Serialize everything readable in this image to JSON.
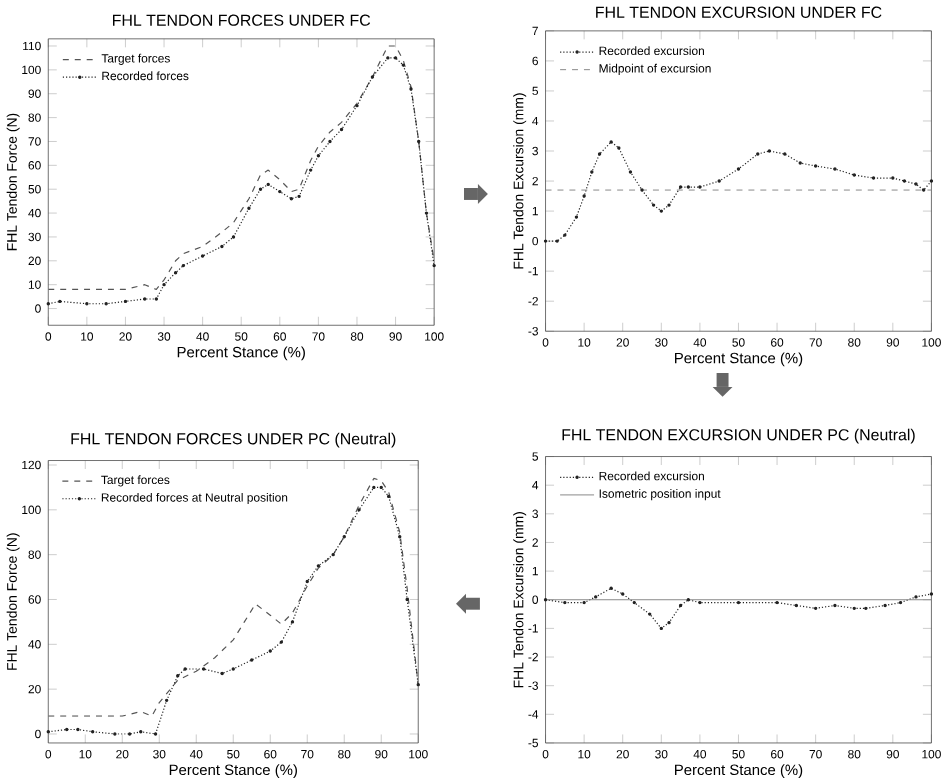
{
  "chart_data": [
    {
      "type": "line",
      "title": "FHL TENDON FORCES UNDER FC",
      "xlabel": "Percent Stance (%)",
      "ylabel": "FHL Tendon Force (N)",
      "xlim": [
        0,
        100
      ],
      "xticks": [
        0,
        10,
        20,
        30,
        40,
        50,
        60,
        70,
        80,
        90,
        100
      ],
      "ylim": [
        -7,
        113
      ],
      "yticks": [
        0,
        10,
        20,
        30,
        40,
        50,
        60,
        70,
        80,
        90,
        100,
        110
      ],
      "legend": "top left",
      "series": [
        {
          "name": "Target forces",
          "color": "#555555",
          "line_style": "dashed",
          "marker": "none",
          "x": [
            0,
            5,
            10,
            15,
            20,
            25,
            28,
            30,
            33,
            35,
            40,
            45,
            48,
            52,
            55,
            57,
            60,
            63,
            65,
            68,
            70,
            73,
            76,
            80,
            84,
            88,
            90,
            92,
            94,
            96,
            98,
            100
          ],
          "values": [
            8,
            8,
            8,
            8,
            8,
            10,
            8,
            12,
            20,
            23,
            26,
            32,
            36,
            46,
            56,
            58,
            54,
            49,
            50,
            62,
            68,
            74,
            78,
            86,
            97,
            110,
            110,
            104,
            93,
            70,
            40,
            20
          ]
        },
        {
          "name": "Recorded forces",
          "color": "#222222",
          "line_style": "dotted",
          "marker": "circle",
          "x": [
            0,
            3,
            10,
            15,
            20,
            25,
            28,
            30,
            33,
            35,
            40,
            45,
            48,
            52,
            55,
            57,
            60,
            63,
            65,
            68,
            70,
            73,
            76,
            80,
            84,
            88,
            90,
            92,
            94,
            96,
            98,
            100
          ],
          "values": [
            2,
            3,
            2,
            2,
            3,
            4,
            4,
            10,
            15,
            18,
            22,
            26,
            30,
            42,
            50,
            52,
            49,
            46,
            47,
            58,
            64,
            70,
            75,
            85,
            97,
            105,
            105,
            102,
            92,
            70,
            40,
            18
          ]
        }
      ]
    },
    {
      "type": "line",
      "title": "FHL TENDON EXCURSION UNDER FC",
      "xlabel": "Percent Stance (%)",
      "ylabel": "FHL Tendon Excursion (mm)",
      "xlim": [
        0,
        100
      ],
      "xticks": [
        0,
        10,
        20,
        30,
        40,
        50,
        60,
        70,
        80,
        90,
        100
      ],
      "ylim": [
        -3,
        7
      ],
      "yticks": [
        -3,
        -2,
        -1,
        0,
        1,
        2,
        3,
        4,
        5,
        6,
        7
      ],
      "legend": "top left",
      "series": [
        {
          "name": "Recorded excursion",
          "color": "#222222",
          "line_style": "dotted",
          "marker": "circle",
          "x": [
            0,
            3,
            5,
            8,
            10,
            12,
            14,
            17,
            19,
            22,
            25,
            28,
            30,
            32,
            35,
            37,
            40,
            45,
            50,
            55,
            58,
            62,
            66,
            70,
            75,
            80,
            85,
            90,
            93,
            96,
            98,
            100
          ],
          "values": [
            0,
            0,
            0.2,
            0.8,
            1.5,
            2.3,
            2.9,
            3.3,
            3.1,
            2.3,
            1.7,
            1.2,
            1.0,
            1.2,
            1.8,
            1.8,
            1.8,
            2.0,
            2.4,
            2.9,
            3.0,
            2.9,
            2.6,
            2.5,
            2.4,
            2.2,
            2.1,
            2.1,
            2.0,
            1.9,
            1.7,
            2.0
          ]
        }
      ],
      "ref_lines": [
        {
          "axis": "y",
          "value": 1.7,
          "label": "Midpoint of excursion",
          "color": "#888888",
          "line_style": "dashed"
        }
      ]
    },
    {
      "type": "line",
      "title": "FHL TENDON FORCES UNDER PC (Neutral)",
      "xlabel": "Percent Stance (%)",
      "ylabel": "FHL Tendon Force (N)",
      "xlim": [
        0,
        100
      ],
      "xticks": [
        0,
        10,
        20,
        30,
        40,
        50,
        60,
        70,
        80,
        90,
        100
      ],
      "ylim": [
        -4,
        122
      ],
      "yticks": [
        0,
        20,
        40,
        60,
        80,
        100,
        120
      ],
      "legend": "top left",
      "series": [
        {
          "name": "Target forces",
          "color": "#555555",
          "line_style": "dashed",
          "marker": "none",
          "x": [
            0,
            10,
            20,
            25,
            28,
            30,
            35,
            40,
            45,
            50,
            53,
            56,
            60,
            63,
            66,
            70,
            73,
            77,
            80,
            84,
            88,
            90,
            92,
            95,
            97,
            100
          ],
          "values": [
            8,
            8,
            8,
            10,
            8,
            14,
            24,
            28,
            34,
            42,
            50,
            58,
            53,
            49,
            54,
            66,
            74,
            80,
            88,
            102,
            114,
            113,
            108,
            90,
            65,
            22
          ]
        },
        {
          "name": "Recorded forces at Neutral position",
          "color": "#222222",
          "line_style": "dotted",
          "marker": "circle",
          "x": [
            0,
            5,
            8,
            12,
            18,
            22,
            25,
            29,
            32,
            35,
            37,
            42,
            47,
            50,
            55,
            60,
            63,
            66,
            70,
            73,
            77,
            80,
            84,
            88,
            90,
            92,
            95,
            97,
            100
          ],
          "values": [
            1,
            2,
            2,
            1,
            0,
            0,
            1,
            0,
            15,
            26,
            29,
            29,
            27,
            29,
            33,
            37,
            41,
            50,
            68,
            75,
            80,
            88,
            100,
            110,
            110,
            106,
            88,
            60,
            22
          ]
        }
      ]
    },
    {
      "type": "line",
      "title": "FHL TENDON EXCURSION UNDER PC (Neutral)",
      "xlabel": "Percent Stance (%)",
      "ylabel": "FHL Tendon Excursion (mm)",
      "xlim": [
        0,
        100
      ],
      "xticks": [
        0,
        10,
        20,
        30,
        40,
        50,
        60,
        70,
        80,
        90,
        100
      ],
      "ylim": [
        -5,
        5
      ],
      "yticks": [
        -5,
        -4,
        -3,
        -2,
        -1,
        0,
        1,
        2,
        3,
        4,
        5
      ],
      "legend": "top left",
      "ref_lines": [
        {
          "axis": "y",
          "value": 0,
          "label": "Isometric position input",
          "color": "#888888",
          "line_style": "solid"
        }
      ],
      "series": [
        {
          "name": "Recorded excursion",
          "color": "#222222",
          "line_style": "dotted",
          "marker": "circle",
          "x": [
            0,
            5,
            10,
            13,
            17,
            20,
            23,
            27,
            30,
            32,
            35,
            37,
            40,
            50,
            60,
            65,
            70,
            75,
            80,
            83,
            88,
            92,
            96,
            100
          ],
          "values": [
            0,
            -0.1,
            -0.1,
            0.1,
            0.4,
            0.2,
            -0.1,
            -0.5,
            -1.0,
            -0.8,
            -0.2,
            0,
            -0.1,
            -0.1,
            -0.1,
            -0.2,
            -0.3,
            -0.2,
            -0.3,
            -0.3,
            -0.2,
            -0.1,
            0.1,
            0.2
          ]
        }
      ]
    }
  ]
}
